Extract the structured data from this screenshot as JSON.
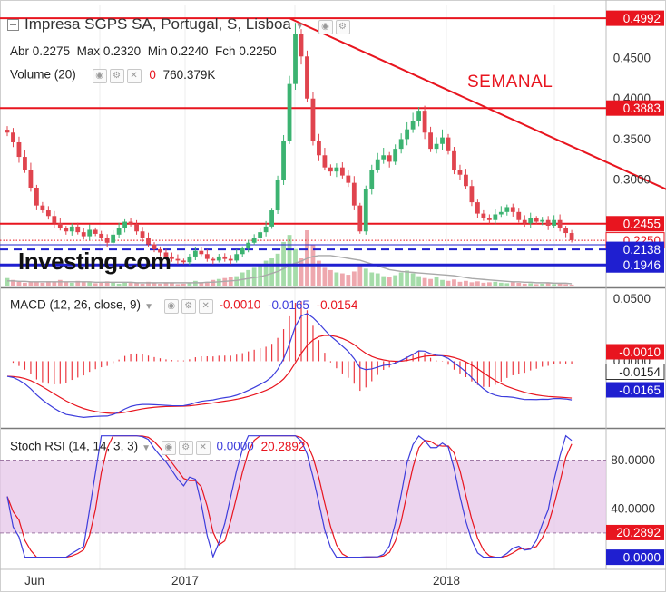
{
  "header": {
    "title": "Impresa SGPS SA, Portugal, S, Lisboa",
    "ohlc": [
      {
        "label": "Abr",
        "value": "0.2275"
      },
      {
        "label": "Max",
        "value": "0.2320"
      },
      {
        "label": "Min",
        "value": "0.2240"
      },
      {
        "label": "Fch",
        "value": "0.2250"
      }
    ],
    "volume_label": "Volume (20)",
    "volume_zero": "0",
    "volume_value": "760.379K"
  },
  "annotation": "SEMANAL",
  "watermark": "Investing.com",
  "colors": {
    "up": "#3cb371",
    "down": "#e0444e",
    "red_line": "#e8151f",
    "blue_line": "#1f1fd0",
    "macd_line": "#3d3ddc",
    "signal_line": "#e8151f",
    "stoch_band": "#e6c6e8"
  },
  "chart_data": [
    {
      "type": "candlestick",
      "panel": "price",
      "yaxis_ticks": [
        "0.4500",
        "0.4000",
        "0.3500",
        "0.3000"
      ],
      "ylim": [
        0.168,
        0.515
      ],
      "x_ticks": [
        "Jun",
        "2017",
        "2018"
      ],
      "price_labels": [
        {
          "value": "0.4992",
          "style": "red"
        },
        {
          "value": "0.3883",
          "style": "red"
        },
        {
          "value": "0.2455",
          "style": "red"
        },
        {
          "value": "0.2250",
          "style": "red-outline"
        },
        {
          "value": "0.2138",
          "style": "blue"
        },
        {
          "value": "0.1946",
          "style": "blue"
        }
      ],
      "horizontal_lines": [
        {
          "value": 0.4992,
          "style": "red-solid"
        },
        {
          "value": 0.3883,
          "style": "red-solid"
        },
        {
          "value": 0.2455,
          "style": "red-solid"
        },
        {
          "value": 0.225,
          "style": "red-dotted"
        },
        {
          "value": 0.2195,
          "style": "blue-thin"
        },
        {
          "value": 0.2138,
          "style": "blue-dashed"
        },
        {
          "value": 0.1946,
          "style": "blue-thick"
        }
      ],
      "trendline": [
        {
          "week": 48,
          "value": 0.4992
        },
        {
          "week": 125,
          "value": 0.2455
        }
      ],
      "closes": [
        0.358,
        0.346,
        0.328,
        0.312,
        0.29,
        0.268,
        0.262,
        0.255,
        0.246,
        0.24,
        0.236,
        0.242,
        0.235,
        0.23,
        0.238,
        0.233,
        0.228,
        0.222,
        0.232,
        0.24,
        0.248,
        0.245,
        0.236,
        0.228,
        0.22,
        0.214,
        0.21,
        0.205,
        0.202,
        0.2,
        0.198,
        0.205,
        0.212,
        0.208,
        0.202,
        0.2,
        0.205,
        0.202,
        0.2,
        0.208,
        0.215,
        0.222,
        0.228,
        0.235,
        0.242,
        0.262,
        0.3,
        0.348,
        0.418,
        0.48,
        0.452,
        0.4,
        0.348,
        0.33,
        0.315,
        0.31,
        0.315,
        0.305,
        0.296,
        0.268,
        0.236,
        0.288,
        0.312,
        0.325,
        0.33,
        0.322,
        0.338,
        0.35,
        0.362,
        0.372,
        0.385,
        0.358,
        0.338,
        0.344,
        0.352,
        0.335,
        0.312,
        0.306,
        0.292,
        0.272,
        0.258,
        0.252,
        0.25,
        0.257,
        0.26,
        0.266,
        0.26,
        0.25,
        0.246,
        0.252,
        0.248,
        0.25,
        0.243,
        0.25,
        0.24,
        0.234,
        0.225
      ],
      "volume_values": [
        18,
        14,
        10,
        8,
        10,
        9,
        8,
        11,
        9,
        14,
        10,
        8,
        12,
        9,
        10,
        7,
        9,
        11,
        8,
        6,
        9,
        8,
        7,
        6,
        10,
        8,
        6,
        9,
        7,
        5,
        6,
        8,
        12,
        9,
        10,
        14,
        16,
        18,
        20,
        22,
        30,
        35,
        40,
        48,
        55,
        60,
        70,
        95,
        110,
        80,
        60,
        120,
        90,
        55,
        40,
        35,
        30,
        28,
        25,
        32,
        45,
        38,
        30,
        28,
        22,
        20,
        24,
        30,
        34,
        28,
        22,
        18,
        16,
        20,
        14,
        12,
        15,
        10,
        12,
        9,
        11,
        8,
        9,
        10,
        8,
        7,
        9,
        8,
        6,
        7,
        5,
        6,
        7,
        5,
        6,
        5,
        4
      ],
      "volume_ma": [
        12,
        12,
        11,
        11,
        10,
        10,
        10,
        10,
        10,
        10,
        10,
        10,
        10,
        10,
        10,
        9,
        9,
        9,
        9,
        9,
        9,
        9,
        8,
        8,
        8,
        8,
        8,
        8,
        8,
        8,
        8,
        8,
        8,
        8,
        9,
        9,
        10,
        11,
        12,
        13,
        15,
        17,
        19,
        21,
        24,
        28,
        32,
        38,
        45,
        50,
        54,
        60,
        64,
        66,
        66,
        66,
        64,
        62,
        60,
        58,
        56,
        52,
        48,
        44,
        40,
        36,
        34,
        32,
        31,
        30,
        29,
        28,
        27,
        26,
        25,
        24,
        23,
        21,
        19,
        17,
        16,
        15,
        14,
        13,
        12,
        11,
        10,
        10,
        9,
        9,
        8,
        8,
        8,
        7,
        7,
        7,
        6
      ]
    },
    {
      "type": "line",
      "panel": "MACD",
      "label": "MACD (12, 26, close, 9)",
      "readouts": [
        "-0.0010",
        "-0.0165",
        "-0.0154"
      ],
      "yaxis_ticks": [
        "0.0500",
        "0.0000"
      ],
      "ylim": [
        -0.0525,
        0.0575
      ],
      "price_labels": [
        {
          "value": "-0.0010",
          "style": "red"
        },
        {
          "value": "-0.0154",
          "style": "outline"
        },
        {
          "value": "-0.0165",
          "style": "blue"
        }
      ]
    },
    {
      "type": "line",
      "panel": "Stoch RSI",
      "label": "Stoch RSI (14, 14, 3, 3)",
      "readouts": [
        "0.0000",
        "20.2892"
      ],
      "yaxis_ticks": [
        "80.0000",
        "40.0000"
      ],
      "ylim": [
        -10,
        105
      ],
      "band": [
        20,
        80
      ],
      "price_labels": [
        {
          "value": "20.2892",
          "style": "red"
        },
        {
          "value": "0.0000",
          "style": "blue"
        }
      ]
    }
  ]
}
